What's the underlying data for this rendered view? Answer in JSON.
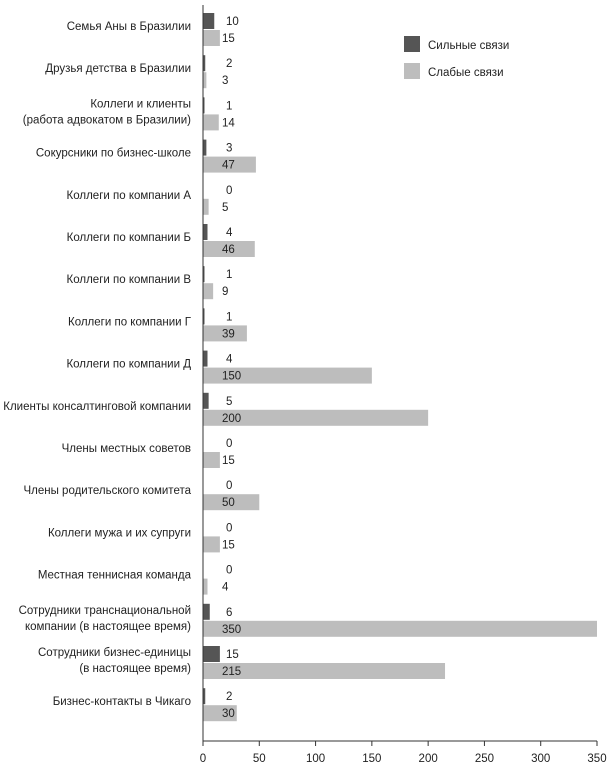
{
  "chart_data": {
    "type": "bar",
    "orientation": "horizontal",
    "categories": [
      [
        "Семья Аны в Бразилии"
      ],
      [
        "Друзья детства в Бразилии"
      ],
      [
        "Коллеги и клиенты",
        "(работа адвокатом в Бразилии)"
      ],
      [
        "Сокурсники по бизнес-школе"
      ],
      [
        "Коллеги по компании А"
      ],
      [
        "Коллеги по компании Б"
      ],
      [
        "Коллеги по компании В"
      ],
      [
        "Коллеги по компании Г"
      ],
      [
        "Коллеги по компании Д"
      ],
      [
        "Клиенты консалтинговой компании"
      ],
      [
        "Члены местных советов"
      ],
      [
        "Члены родительского комитета"
      ],
      [
        "Коллеги мужа и их супруги"
      ],
      [
        "Местная теннисная команда"
      ],
      [
        "Сотрудники транснациональной",
        "компании (в настоящее время)"
      ],
      [
        "Сотрудники бизнес-единицы",
        "(в настоящее время)"
      ],
      [
        "Бизнес-контакты в Чикаго"
      ]
    ],
    "series": [
      {
        "name": "Сильные связи",
        "color": "#555555",
        "values": [
          10,
          2,
          1,
          3,
          0,
          4,
          1,
          1,
          4,
          5,
          0,
          0,
          0,
          0,
          6,
          15,
          2
        ],
        "labels": [
          "10",
          "2",
          "1",
          "3",
          "0",
          "4",
          "1",
          "1",
          "4",
          "5",
          "0",
          "0",
          "0",
          "0",
          "6",
          "15",
          "2"
        ]
      },
      {
        "name": "Слабые связи",
        "color": "#bdbdbd",
        "values": [
          15,
          3,
          14,
          47,
          5,
          46,
          9,
          39,
          150,
          200,
          15,
          50,
          15,
          4,
          350,
          215,
          30
        ],
        "labels": [
          "15",
          "3",
          "14",
          "47",
          "5",
          "46",
          "9",
          "39",
          "150",
          "200",
          "15",
          "50",
          "15",
          "4",
          "350",
          "215",
          "30"
        ]
      }
    ],
    "x_ticks": [
      0,
      50,
      100,
      150,
      200,
      250,
      300,
      350
    ],
    "x_tick_labels": [
      "0",
      "50",
      "100",
      "150",
      "200",
      "250",
      "300",
      "350"
    ],
    "xlim": [
      0,
      350
    ],
    "grid": false,
    "legend_position": "top-right"
  }
}
